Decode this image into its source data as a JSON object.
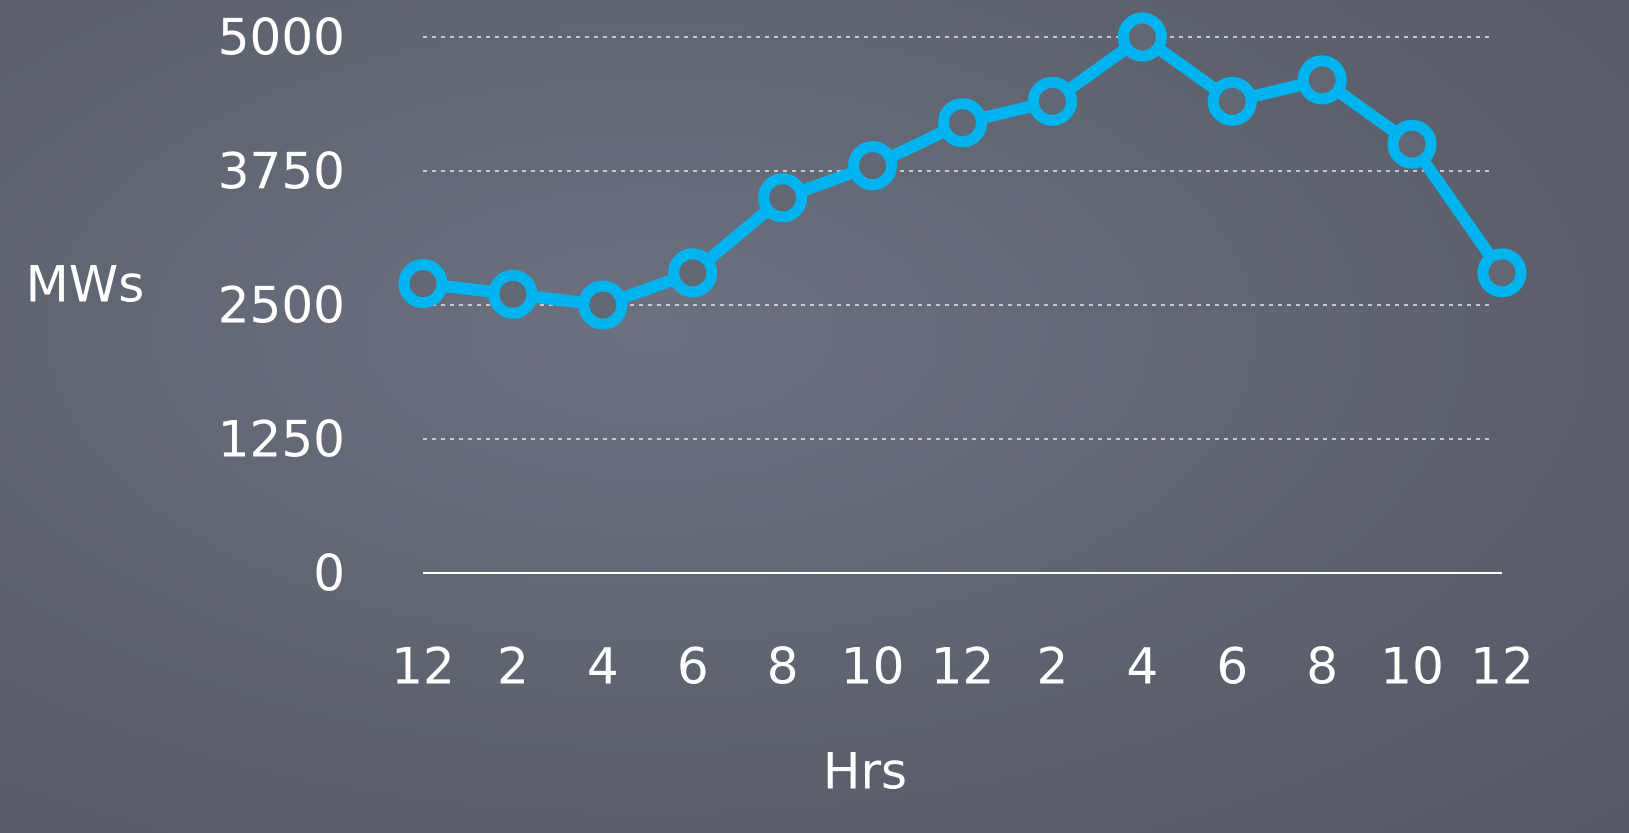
{
  "chart_data": {
    "type": "line",
    "x_label": "Hrs",
    "y_label": "MWs",
    "categories": [
      "12",
      "2",
      "4",
      "6",
      "8",
      "10",
      "12",
      "2",
      "4",
      "6",
      "8",
      "10",
      "12"
    ],
    "values": [
      2700,
      2600,
      2500,
      2800,
      3500,
      3800,
      4200,
      4400,
      5000,
      4400,
      4600,
      4000,
      2800
    ],
    "color": "#00b4f0",
    "ylim": [
      0,
      5000
    ],
    "yticks": [
      0,
      1250,
      2500,
      3750,
      5000
    ],
    "grid": true
  }
}
